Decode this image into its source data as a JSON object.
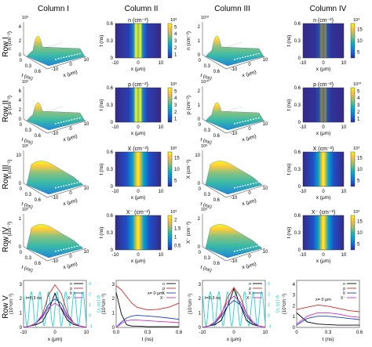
{
  "column_labels": [
    "Column I",
    "Column II",
    "Column III",
    "Column IV"
  ],
  "row_labels": [
    "Row I",
    "Row II",
    "Row III",
    "Row IV",
    "Row V"
  ],
  "colors": {
    "parula": [
      "#352a87",
      "#0f5cdd",
      "#1481d6",
      "#06a4ca",
      "#2eb7a4",
      "#87bf77",
      "#d1bb59",
      "#fec832",
      "#f9fb0e"
    ],
    "n": "#000000",
    "p": "#d62728",
    "X": "#1f3fbf",
    "Xm": "#c832c8",
    "phi": "#1fd3d3"
  },
  "surface": {
    "t_label": "t (ns)",
    "x_label": "x (μm)",
    "t_ticks": [
      "0",
      "0.3",
      "0.6"
    ],
    "x_ticks": [
      "-10",
      "0",
      "10"
    ],
    "rows": [
      {
        "zlabel": "n (cm⁻²)",
        "exp": "10⁹",
        "zticks": [
          "0",
          "2",
          "4"
        ],
        "exp3": "10¹⁰",
        "zticks3": [
          "0",
          "1",
          "2"
        ]
      },
      {
        "zlabel": "p (cm⁻²)",
        "exp": "10⁹",
        "zticks": [
          "0",
          "2",
          "4",
          "6"
        ],
        "exp3": "10¹⁰",
        "zticks3": [
          "0",
          "1",
          "2"
        ]
      },
      {
        "zlabel": "X (cm⁻²)",
        "exp": "10⁸",
        "zticks": [
          "0",
          "10"
        ],
        "exp3": "10⁹",
        "zticks3": [
          "0",
          "10"
        ]
      },
      {
        "zlabel": "X⁻ (cm⁻²)",
        "exp": "10⁹",
        "zticks": [
          "0",
          "1"
        ],
        "exp3": "10⁹",
        "zticks3": [
          "0",
          "2"
        ]
      }
    ]
  },
  "heatmap": {
    "t_label": "t (ns)",
    "x_label": "x (μm)",
    "t_ticks": [
      "0",
      "0.3",
      "0.6"
    ],
    "x_ticks": [
      "-10",
      "0",
      "10"
    ],
    "rows": [
      {
        "title": "n (cm⁻²)",
        "exp2": "10⁸",
        "cb2": [
          "1",
          "2",
          "3",
          "4",
          "5"
        ],
        "exp4": "10⁹",
        "cb4": [
          "5",
          "10",
          "15"
        ]
      },
      {
        "title": "p (cm⁻²)",
        "exp2": "10⁹",
        "cb2": [
          "1",
          "2",
          "3",
          "4",
          "5"
        ],
        "exp4": "10¹⁰",
        "cb4": [
          "1",
          "2",
          "3",
          "4",
          "5"
        ]
      },
      {
        "title": "X (cm⁻²)",
        "exp2": "10⁸",
        "cb2": [
          "5",
          "10",
          "15"
        ],
        "exp4": "10⁹",
        "cb4": [
          "5",
          "10",
          "15"
        ]
      },
      {
        "title": "X⁻ (cm⁻²)",
        "exp2": "10⁹",
        "cb2": [
          "0.5",
          "1",
          "1.5",
          "2"
        ],
        "exp4": "10⁹",
        "cb4": [
          "5",
          "10",
          "15"
        ]
      }
    ]
  },
  "row5": {
    "x_label": "x (μm)",
    "t_label": "t (ns)",
    "y_label_left": "(10⁹cm⁻²)",
    "y_label_phi": "φ (10 V)",
    "legend": [
      "n",
      "p",
      "X",
      "X⁻"
    ],
    "p1_annot": "t=0.3 ns",
    "p3_annot": "t=0.3 ns",
    "p2_annot": "x= 0 μm",
    "p4_annot": "x= 0 μm",
    "p1_yticks": [
      "0",
      "1",
      "2",
      "3"
    ],
    "p1_phi_ticks": [
      "-1",
      "0",
      "1",
      "2",
      "3"
    ],
    "p1_xticks": [
      "-10",
      "0",
      "10"
    ],
    "p2_yticks": [
      "0",
      "1",
      "2",
      "3"
    ],
    "p2_xticks": [
      "0.0",
      "0.3",
      "0.6"
    ],
    "p3_yticks": [
      "0",
      "1",
      "2",
      "3"
    ],
    "p3_phi_ticks": [
      "-1",
      "0",
      "1",
      "2",
      "3"
    ],
    "p3_xticks": [
      "-10",
      "0",
      "10"
    ],
    "p4_yticks": [
      "0",
      "1",
      "2",
      "3",
      "4"
    ],
    "p4_xticks": [
      "0",
      "0.3",
      "0.6"
    ]
  },
  "chart_data": [
    {
      "type": "line",
      "panel": "Row V, Column I",
      "x": [
        -10,
        -8,
        -6,
        -4,
        -2,
        0,
        2,
        4,
        6,
        8,
        10
      ],
      "xlabel": "x (μm)",
      "ylabel": "(10⁹cm⁻²)",
      "ylim": [
        0,
        3.3
      ],
      "series": [
        {
          "name": "n",
          "values": [
            0.0,
            0.1,
            0.2,
            0.4,
            1.2,
            2.4,
            1.3,
            0.5,
            0.2,
            0.1,
            0.0
          ]
        },
        {
          "name": "p",
          "values": [
            0.0,
            0.1,
            0.3,
            0.9,
            2.3,
            3.0,
            2.4,
            1.0,
            0.3,
            0.1,
            0.0
          ]
        },
        {
          "name": "X",
          "values": [
            0.0,
            0.1,
            0.3,
            0.8,
            1.6,
            2.0,
            1.7,
            0.8,
            0.3,
            0.1,
            0.0
          ]
        },
        {
          "name": "X⁻",
          "values": [
            0.0,
            0.1,
            0.3,
            0.7,
            1.4,
            1.7,
            1.4,
            0.7,
            0.3,
            0.1,
            0.0
          ]
        }
      ]
    },
    {
      "type": "line",
      "panel": "Row V, Column II",
      "x": [
        0.0,
        0.05,
        0.1,
        0.15,
        0.2,
        0.3,
        0.4,
        0.5,
        0.6
      ],
      "xlabel": "t (ns)",
      "ylabel": "(10⁹cm⁻²)",
      "ylim": [
        0,
        3.5
      ],
      "series": [
        {
          "name": "n",
          "values": [
            2.6,
            1.0,
            0.2,
            0.1,
            0.1,
            0.05,
            0.05,
            0.05,
            0.05
          ]
        },
        {
          "name": "p",
          "values": [
            3.1,
            2.8,
            2.3,
            1.8,
            1.5,
            1.3,
            1.35,
            1.5,
            1.8
          ]
        },
        {
          "name": "X",
          "values": [
            0.0,
            0.4,
            0.7,
            0.85,
            0.9,
            0.85,
            0.78,
            0.7,
            0.6
          ]
        },
        {
          "name": "X⁻",
          "values": [
            0.0,
            0.3,
            0.5,
            0.55,
            0.55,
            0.5,
            0.45,
            0.4,
            0.35
          ]
        }
      ]
    },
    {
      "type": "line",
      "panel": "Row V, Column III",
      "x": [
        -10,
        -8,
        -6,
        -4,
        -2,
        0,
        2,
        4,
        6,
        8,
        10
      ],
      "xlabel": "x (μm)",
      "ylabel": "(10⁹cm⁻²)",
      "ylim": [
        0,
        3.3
      ],
      "series": [
        {
          "name": "n",
          "values": [
            0.0,
            0.1,
            0.2,
            0.5,
            1.5,
            2.7,
            1.6,
            0.5,
            0.2,
            0.1,
            0.0
          ]
        },
        {
          "name": "p",
          "values": [
            0.0,
            0.1,
            0.3,
            0.9,
            2.1,
            2.8,
            2.2,
            1.0,
            0.3,
            0.1,
            0.0
          ]
        },
        {
          "name": "X",
          "values": [
            0.0,
            0.1,
            0.3,
            0.8,
            1.5,
            1.9,
            1.6,
            0.8,
            0.3,
            0.1,
            0.0
          ]
        },
        {
          "name": "X⁻",
          "values": [
            0.0,
            0.1,
            0.4,
            1.0,
            1.8,
            2.2,
            1.8,
            1.0,
            0.4,
            0.1,
            0.0
          ]
        }
      ]
    },
    {
      "type": "line",
      "panel": "Row V, Column IV",
      "x": [
        0.0,
        0.1,
        0.2,
        0.3,
        0.4,
        0.5,
        0.6
      ],
      "xlabel": "t (ns)",
      "ylabel": "(10⁹cm⁻²)",
      "ylim": [
        0,
        4.2
      ],
      "series": [
        {
          "name": "n",
          "values": [
            1.3,
            0.5,
            0.3,
            0.25,
            0.2,
            0.2,
            0.2
          ]
        },
        {
          "name": "p",
          "values": [
            1.6,
            1.8,
            2.0,
            1.9,
            1.7,
            1.5,
            1.4
          ]
        },
        {
          "name": "X",
          "values": [
            0.2,
            0.8,
            1.0,
            1.0,
            0.9,
            0.8,
            0.7
          ]
        },
        {
          "name": "X⁻",
          "values": [
            0.3,
            1.0,
            1.3,
            1.3,
            1.2,
            1.0,
            0.9
          ]
        }
      ]
    }
  ]
}
